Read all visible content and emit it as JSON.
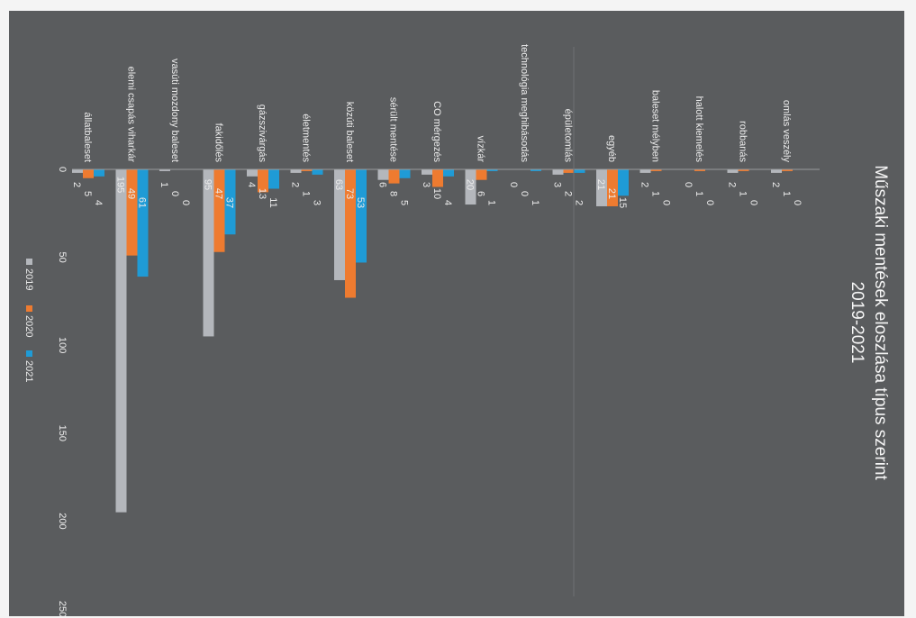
{
  "chart_data": {
    "type": "bar",
    "orientation": "horizontal-bars, figure rotated 90° clockwise",
    "title": "Műszaki mentések eloszlása típus szerint",
    "subtitle": "2019-2021",
    "categories": [
      "állatbaleset",
      "elemi csapás viharkár",
      "vasúti mozdony baleset",
      "fakidőlés",
      "gázszivárgás",
      "életmentés",
      "közúti baleset",
      "sérült mentése",
      "CO mérgezés",
      "vízkár",
      "technológia meghibásodás",
      "épületomlás",
      "egyéb",
      "baleset mélyben",
      "halott kiemelés",
      "robbanás",
      "omlás veszély"
    ],
    "series": [
      {
        "name": "2019",
        "color": "#b4b7bc",
        "values": [
          2,
          195,
          1,
          95,
          4,
          2,
          63,
          6,
          3,
          20,
          0,
          3,
          21,
          2,
          0,
          2,
          2
        ]
      },
      {
        "name": "2020",
        "color": "#ee7b30",
        "values": [
          5,
          49,
          0,
          47,
          13,
          1,
          73,
          8,
          10,
          6,
          0,
          2,
          21,
          1,
          1,
          1,
          1
        ]
      },
      {
        "name": "2021",
        "color": "#1f9bd6",
        "values": [
          4,
          61,
          0,
          37,
          11,
          3,
          53,
          5,
          4,
          1,
          1,
          2,
          15,
          0,
          0,
          0,
          0
        ]
      }
    ],
    "value_axis": {
      "min": 0,
      "max": 250,
      "ticks": [
        0,
        50,
        100,
        150,
        200,
        250
      ]
    },
    "data_labels": true,
    "grid": false,
    "legend_position": "bottom",
    "background_color": "#5a5c5e",
    "text_color": "#ececec"
  }
}
